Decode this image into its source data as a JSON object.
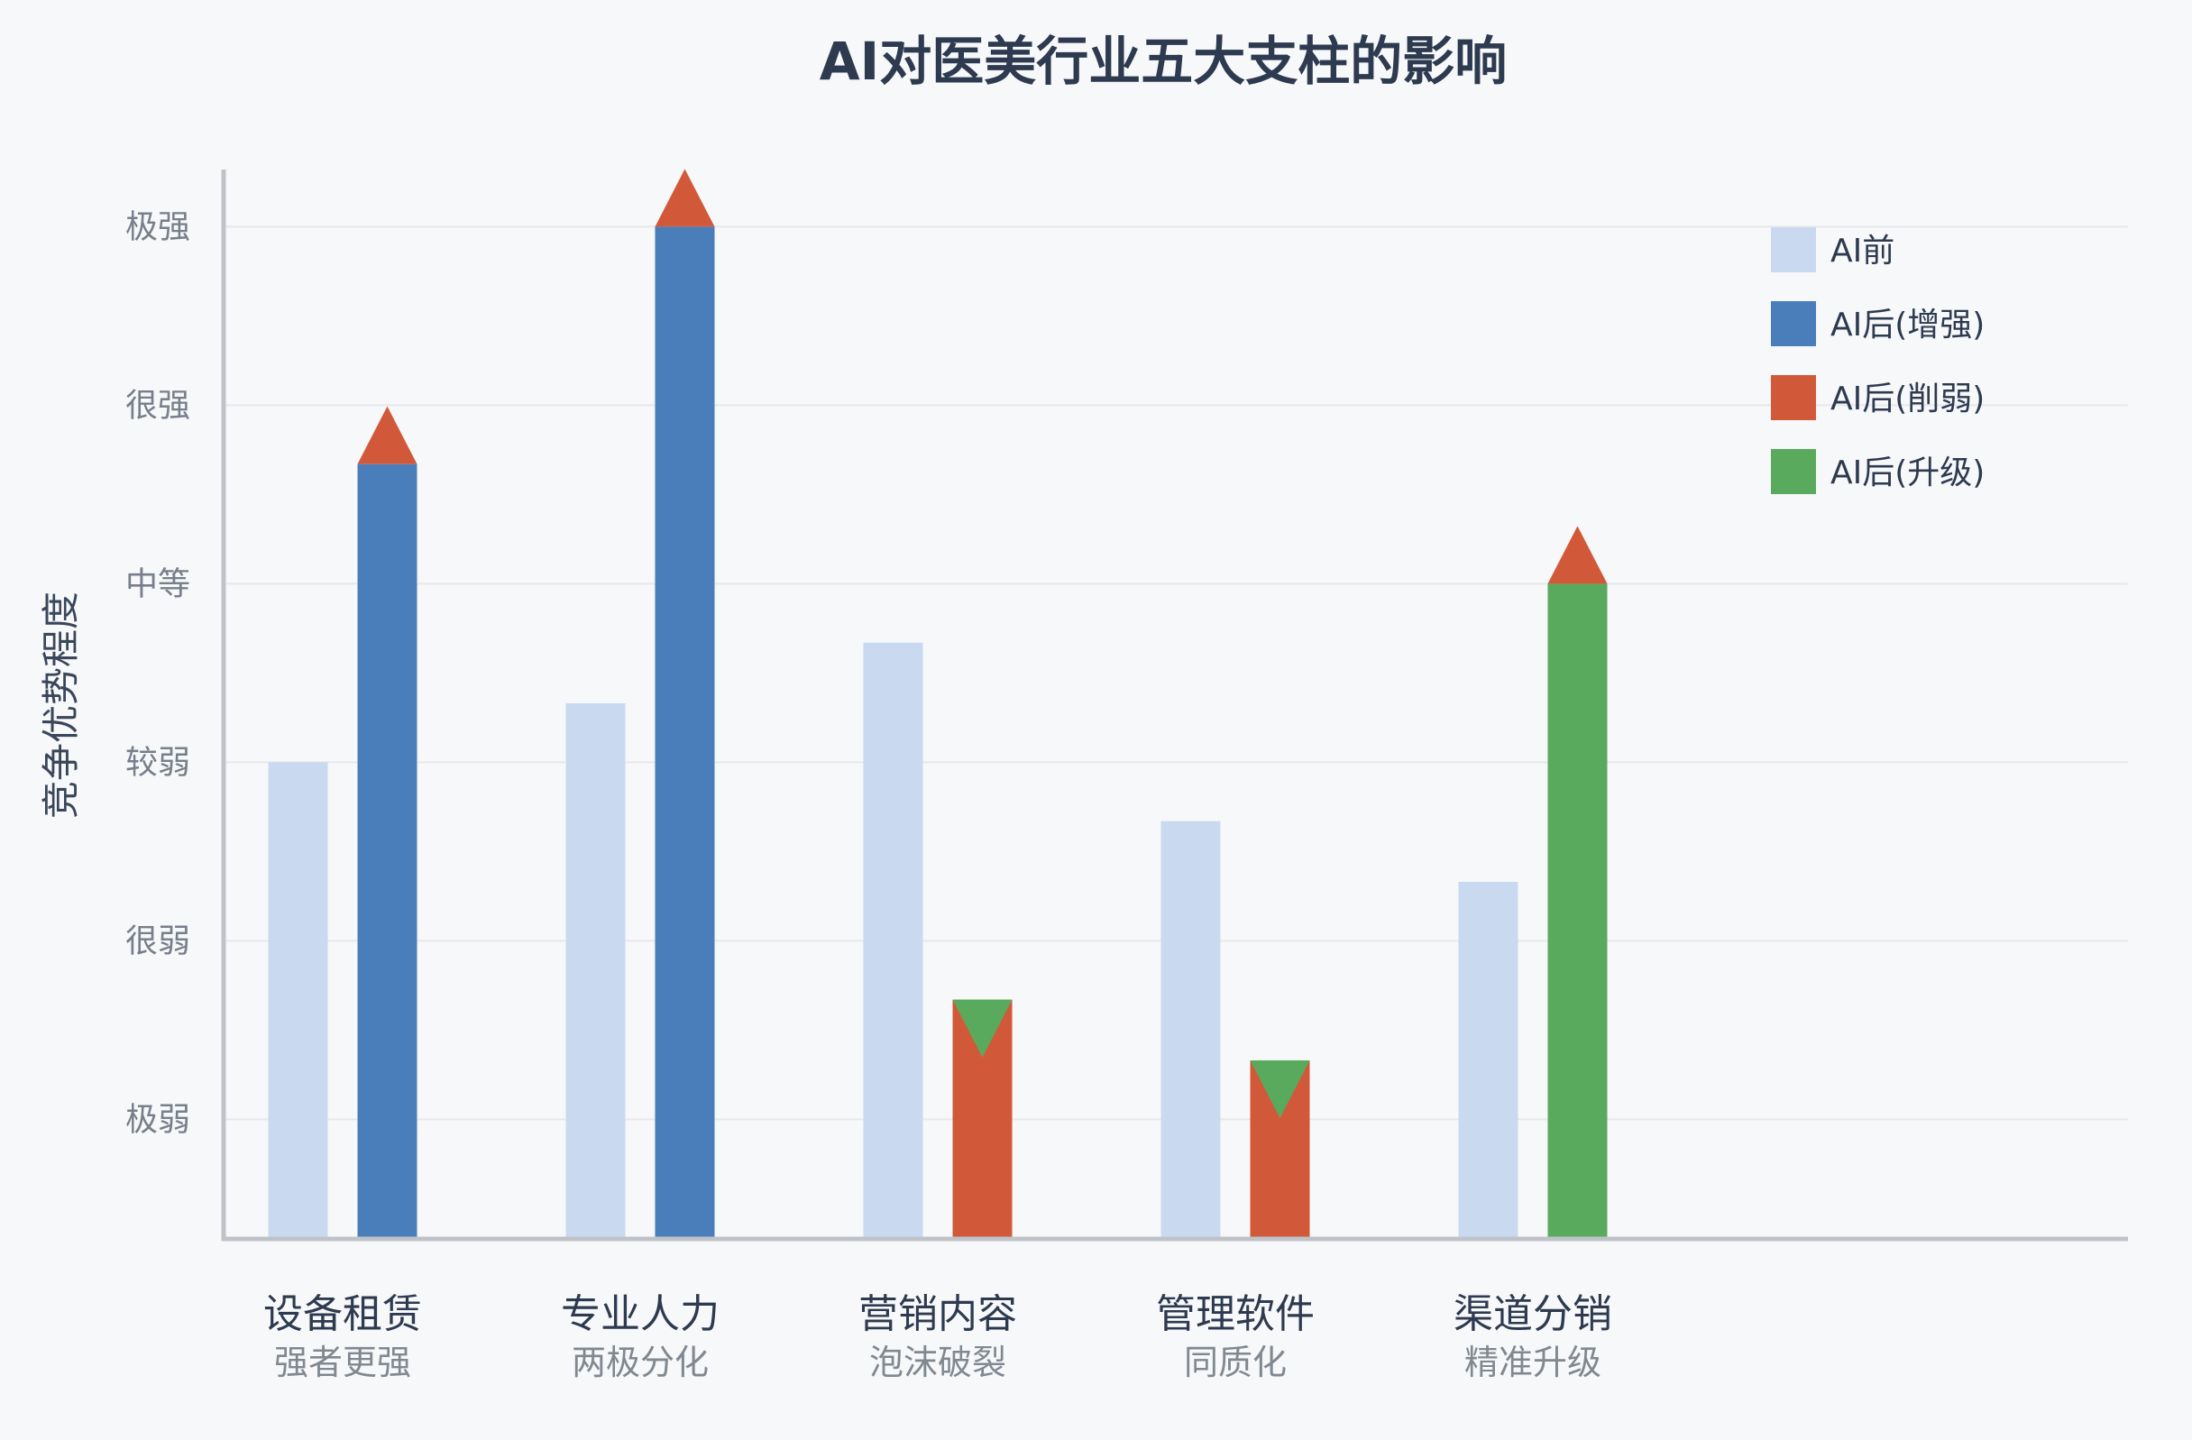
{
  "chart_data": {
    "type": "bar",
    "title": "AI对医美行业五大支柱的影响",
    "ylabel": "竞争优势程度",
    "xlabel": "",
    "yticks": [
      "极弱",
      "很弱",
      "较弱",
      "中等",
      "很强",
      "极强"
    ],
    "ylim": [
      0.33,
      6.0
    ],
    "grid": "horizontal",
    "legend_position": "top-right",
    "categories": [
      "设备租赁",
      "专业人力",
      "营销内容",
      "管理软件",
      "渠道分销"
    ],
    "subtitles": [
      "强者更强",
      "两极分化",
      "泡沫破裂",
      "同质化",
      "精准升级"
    ],
    "legend": [
      {
        "key": "before",
        "name": "AI前",
        "color": "#c9daf0"
      },
      {
        "key": "enhance",
        "name": "AI后(增强)",
        "color": "#4a7ebb"
      },
      {
        "key": "weaken",
        "name": "AI后(削弱)",
        "color": "#d2583a"
      },
      {
        "key": "upgrade",
        "name": "AI后(升级)",
        "color": "#59aa5c"
      }
    ],
    "series": [
      {
        "name": "AI前",
        "values": [
          3.0,
          3.33,
          3.67,
          2.67,
          2.33
        ]
      },
      {
        "name": "AI后",
        "values": [
          4.67,
          6.0,
          1.67,
          1.33,
          4.0
        ],
        "effects": [
          "enhance",
          "enhance",
          "weaken",
          "weaken",
          "upgrade"
        ],
        "marker_direction": [
          "up",
          "up",
          "down",
          "down",
          "up"
        ]
      }
    ]
  }
}
